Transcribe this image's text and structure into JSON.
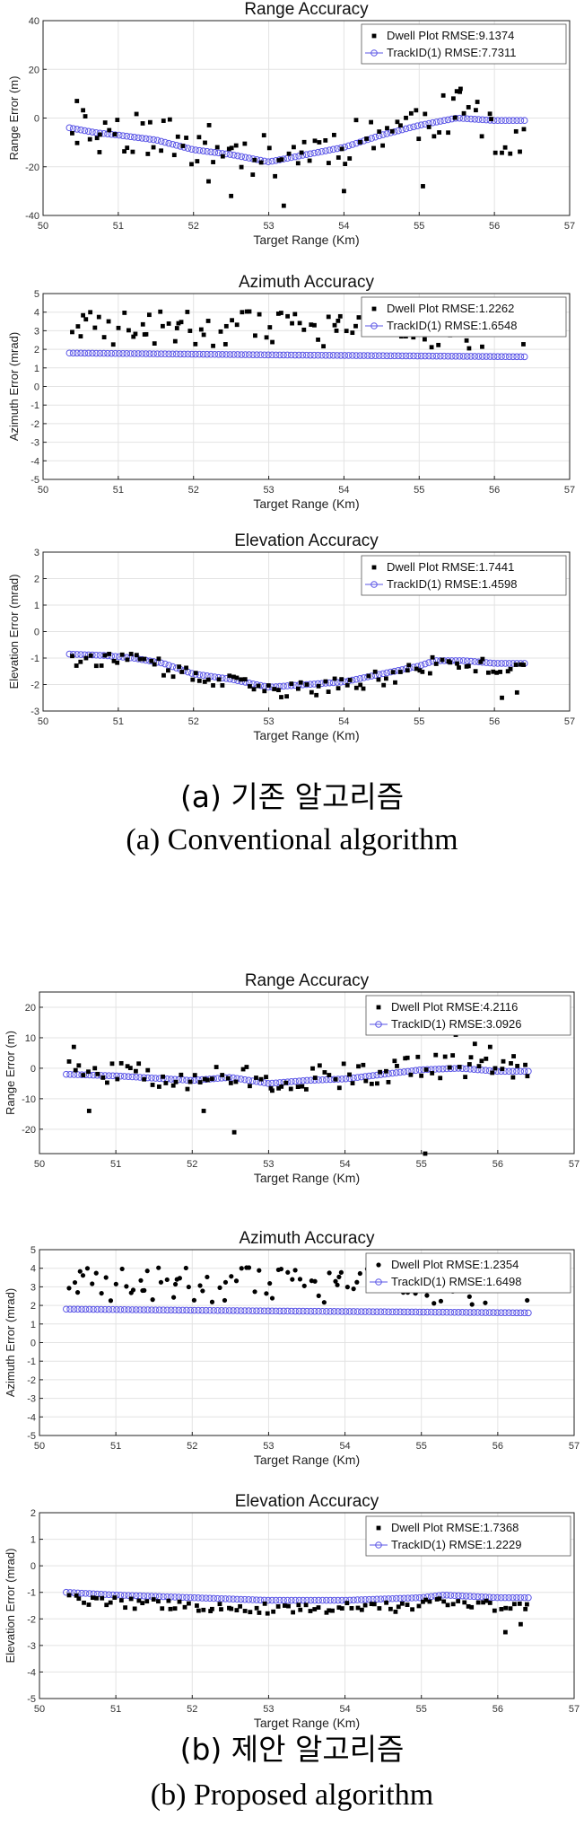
{
  "colors": {
    "dwell": "#000000",
    "track": "#5a55e6",
    "axis": "#222222"
  },
  "captions": {
    "a_ko": "(a) 기존 알고리즘",
    "a_en": "(a) Conventional algorithm",
    "b_ko": "(b) 제안 알고리즘",
    "b_en": "(b) Proposed algorithm"
  },
  "chart_data": [
    {
      "type": "scatter",
      "group": "a",
      "title": "Range Accuracy",
      "xlabel": "Target Range (Km)",
      "ylabel": "Range Error (m)",
      "xlim": [
        50,
        57
      ],
      "ylim": [
        -40,
        40
      ],
      "xticks": [
        50,
        51,
        52,
        53,
        54,
        55,
        56,
        57
      ],
      "yticks": [
        -40,
        -20,
        0,
        20,
        40
      ],
      "grid": true,
      "legend_position": "top-right",
      "series": [
        {
          "name": "Dwell Plot RMSE:9.1374",
          "marker": "square",
          "color": "#000000",
          "seed": 11,
          "noise": 9,
          "bias": 2,
          "dips": [
            [
              56.0,
              57.0,
              -9
            ]
          ],
          "points": [
            [
              50.45,
              7
            ],
            [
              55.5,
              11
            ],
            [
              55.55,
              12
            ],
            [
              52.5,
              -32
            ],
            [
              53.2,
              -36
            ],
            [
              54.0,
              -30
            ],
            [
              55.05,
              -28
            ],
            [
              52.2,
              -26
            ],
            [
              50.75,
              -14
            ]
          ]
        },
        {
          "name": "TrackID(1) RMSE:7.7311",
          "marker": "circle",
          "color": "#5a55e6",
          "curve": [
            [
              50.35,
              -4
            ],
            [
              50.7,
              -6
            ],
            [
              51.0,
              -7
            ],
            [
              51.5,
              -9
            ],
            [
              52.0,
              -13
            ],
            [
              52.5,
              -15
            ],
            [
              53.0,
              -18
            ],
            [
              53.5,
              -15
            ],
            [
              54.0,
              -12
            ],
            [
              54.5,
              -7
            ],
            [
              55.0,
              -3
            ],
            [
              55.5,
              0
            ],
            [
              56.0,
              -1
            ],
            [
              56.4,
              -1
            ]
          ]
        }
      ]
    },
    {
      "type": "scatter",
      "group": "a",
      "title": "Azimuth Accuracy",
      "xlabel": "Target Range (Km)",
      "ylabel": "Azimuth Error (mrad)",
      "xlim": [
        50,
        57
      ],
      "ylim": [
        -5,
        5
      ],
      "xticks": [
        50,
        51,
        52,
        53,
        54,
        55,
        56,
        57
      ],
      "yticks": [
        -5,
        -4,
        -3,
        -2,
        -1,
        0,
        1,
        2,
        3,
        4,
        5
      ],
      "grid": true,
      "legend_position": "top-right",
      "series": [
        {
          "name": "Dwell Plot RMSE:1.2262",
          "marker": "square",
          "color": "#000000",
          "seed": 23,
          "noise": 1.0,
          "bias": 1.4,
          "points": [
            [
              51.8,
              3.4
            ],
            [
              50.5,
              2.7
            ],
            [
              51.35,
              2.8
            ],
            [
              53.9,
              3.0
            ]
          ]
        },
        {
          "name": "TrackID(1) RMSE:1.6548",
          "marker": "circle",
          "color": "#5a55e6",
          "curve": [
            [
              50.35,
              1.8
            ],
            [
              53.0,
              1.7
            ],
            [
              56.4,
              1.6
            ]
          ]
        }
      ]
    },
    {
      "type": "scatter",
      "group": "a",
      "title": "Elevation Accuracy",
      "xlabel": "Target Range (Km)",
      "ylabel": "Elevation Error (mrad)",
      "xlim": [
        50,
        57
      ],
      "ylim": [
        -3,
        3
      ],
      "xticks": [
        50,
        51,
        52,
        53,
        54,
        55,
        56,
        57
      ],
      "yticks": [
        -3,
        -2,
        -1,
        0,
        1,
        2,
        3
      ],
      "grid": true,
      "legend_position": "top-right",
      "series": [
        {
          "name": "Dwell Plot RMSE:1.7441",
          "marker": "square",
          "color": "#000000",
          "seed": 37,
          "noise": 0.3,
          "bias": -0.15,
          "points": [
            [
              56.1,
              -2.5
            ],
            [
              56.3,
              -2.3
            ]
          ]
        },
        {
          "name": "TrackID(1) RMSE:1.4598",
          "marker": "circle",
          "color": "#5a55e6",
          "curve": [
            [
              50.35,
              -0.85
            ],
            [
              50.8,
              -0.9
            ],
            [
              51.2,
              -1.0
            ],
            [
              51.6,
              -1.2
            ],
            [
              52.0,
              -1.6
            ],
            [
              52.5,
              -1.8
            ],
            [
              53.0,
              -2.1
            ],
            [
              53.5,
              -2.0
            ],
            [
              54.0,
              -1.9
            ],
            [
              54.5,
              -1.6
            ],
            [
              55.0,
              -1.3
            ],
            [
              55.2,
              -1.1
            ],
            [
              55.6,
              -1.1
            ],
            [
              56.0,
              -1.2
            ],
            [
              56.4,
              -1.2
            ]
          ]
        }
      ]
    },
    {
      "type": "scatter",
      "group": "b",
      "title": "Range Accuracy",
      "xlabel": "Target Range (Km)",
      "ylabel": "Range Error (m)",
      "xlim": [
        50,
        57
      ],
      "ylim": [
        -28,
        25
      ],
      "xticks": [
        50,
        51,
        52,
        53,
        54,
        55,
        56,
        57
      ],
      "yticks": [
        -20,
        -10,
        0,
        10,
        20
      ],
      "grid": true,
      "legend_position": "top-right",
      "series": [
        {
          "name": "Dwell Plot RMSE:4.2116",
          "marker": "square",
          "color": "#000000",
          "seed": 51,
          "noise": 4,
          "bias": 1,
          "points": [
            [
              50.45,
              7
            ],
            [
              55.45,
              11
            ],
            [
              55.9,
              7
            ],
            [
              52.55,
              -21
            ],
            [
              50.65,
              -14
            ],
            [
              52.15,
              -14
            ],
            [
              55.05,
              -28
            ],
            [
              56.2,
              -3
            ],
            [
              55.7,
              8
            ]
          ]
        },
        {
          "name": "TrackID(1) RMSE:3.0926",
          "marker": "circle",
          "color": "#5a55e6",
          "curve": [
            [
              50.35,
              -2
            ],
            [
              51.0,
              -2.5
            ],
            [
              52.0,
              -4
            ],
            [
              52.5,
              -3
            ],
            [
              53.0,
              -5
            ],
            [
              53.5,
              -4
            ],
            [
              54.0,
              -3.5
            ],
            [
              54.5,
              -2
            ],
            [
              55.0,
              -0.5
            ],
            [
              55.5,
              0
            ],
            [
              56.0,
              -1
            ],
            [
              56.4,
              -1
            ]
          ]
        }
      ]
    },
    {
      "type": "scatter",
      "group": "b",
      "title": "Azimuth Accuracy",
      "xlabel": "Target Range (Km)",
      "ylabel": "Azimuth Error (mrad)",
      "xlim": [
        50,
        57
      ],
      "ylim": [
        -5,
        5
      ],
      "xticks": [
        50,
        51,
        52,
        53,
        54,
        55,
        56,
        57
      ],
      "yticks": [
        -5,
        -4,
        -3,
        -2,
        -1,
        0,
        1,
        2,
        3,
        4,
        5
      ],
      "grid": true,
      "legend_position": "top-right",
      "series": [
        {
          "name": "Dwell Plot RMSE:1.2354",
          "marker": "dot",
          "color": "#000000",
          "seed": 23,
          "noise": 1.0,
          "bias": 1.4,
          "points": [
            [
              51.8,
              3.4
            ],
            [
              50.5,
              2.7
            ],
            [
              51.35,
              2.8
            ],
            [
              53.9,
              3.1
            ]
          ]
        },
        {
          "name": "TrackID(1) RMSE:1.6498",
          "marker": "circle",
          "color": "#5a55e6",
          "curve": [
            [
              50.35,
              1.8
            ],
            [
              53.0,
              1.7
            ],
            [
              56.4,
              1.6
            ]
          ]
        }
      ]
    },
    {
      "type": "scatter",
      "group": "b",
      "title": "Elevation Accuracy",
      "xlabel": "Target Range (Km)",
      "ylabel": "Elevation Error (mrad)",
      "xlim": [
        50,
        57
      ],
      "ylim": [
        -5,
        2
      ],
      "xticks": [
        50,
        51,
        52,
        53,
        54,
        55,
        56,
        57
      ],
      "yticks": [
        -5,
        -4,
        -3,
        -2,
        -1,
        0,
        1,
        2
      ],
      "grid": true,
      "legend_position": "top-right",
      "series": [
        {
          "name": "Dwell Plot RMSE:1.7368",
          "marker": "square",
          "color": "#000000",
          "seed": 63,
          "noise": 0.2,
          "bias": -0.3,
          "points": [
            [
              56.1,
              -2.5
            ],
            [
              56.3,
              -2.2
            ]
          ]
        },
        {
          "name": "TrackID(1) RMSE:1.2229",
          "marker": "circle",
          "color": "#5a55e6",
          "curve": [
            [
              50.35,
              -1.0
            ],
            [
              51.0,
              -1.1
            ],
            [
              52.0,
              -1.2
            ],
            [
              53.0,
              -1.3
            ],
            [
              54.0,
              -1.3
            ],
            [
              55.0,
              -1.2
            ],
            [
              55.3,
              -1.1
            ],
            [
              56.0,
              -1.2
            ],
            [
              56.4,
              -1.2
            ]
          ]
        }
      ]
    }
  ]
}
